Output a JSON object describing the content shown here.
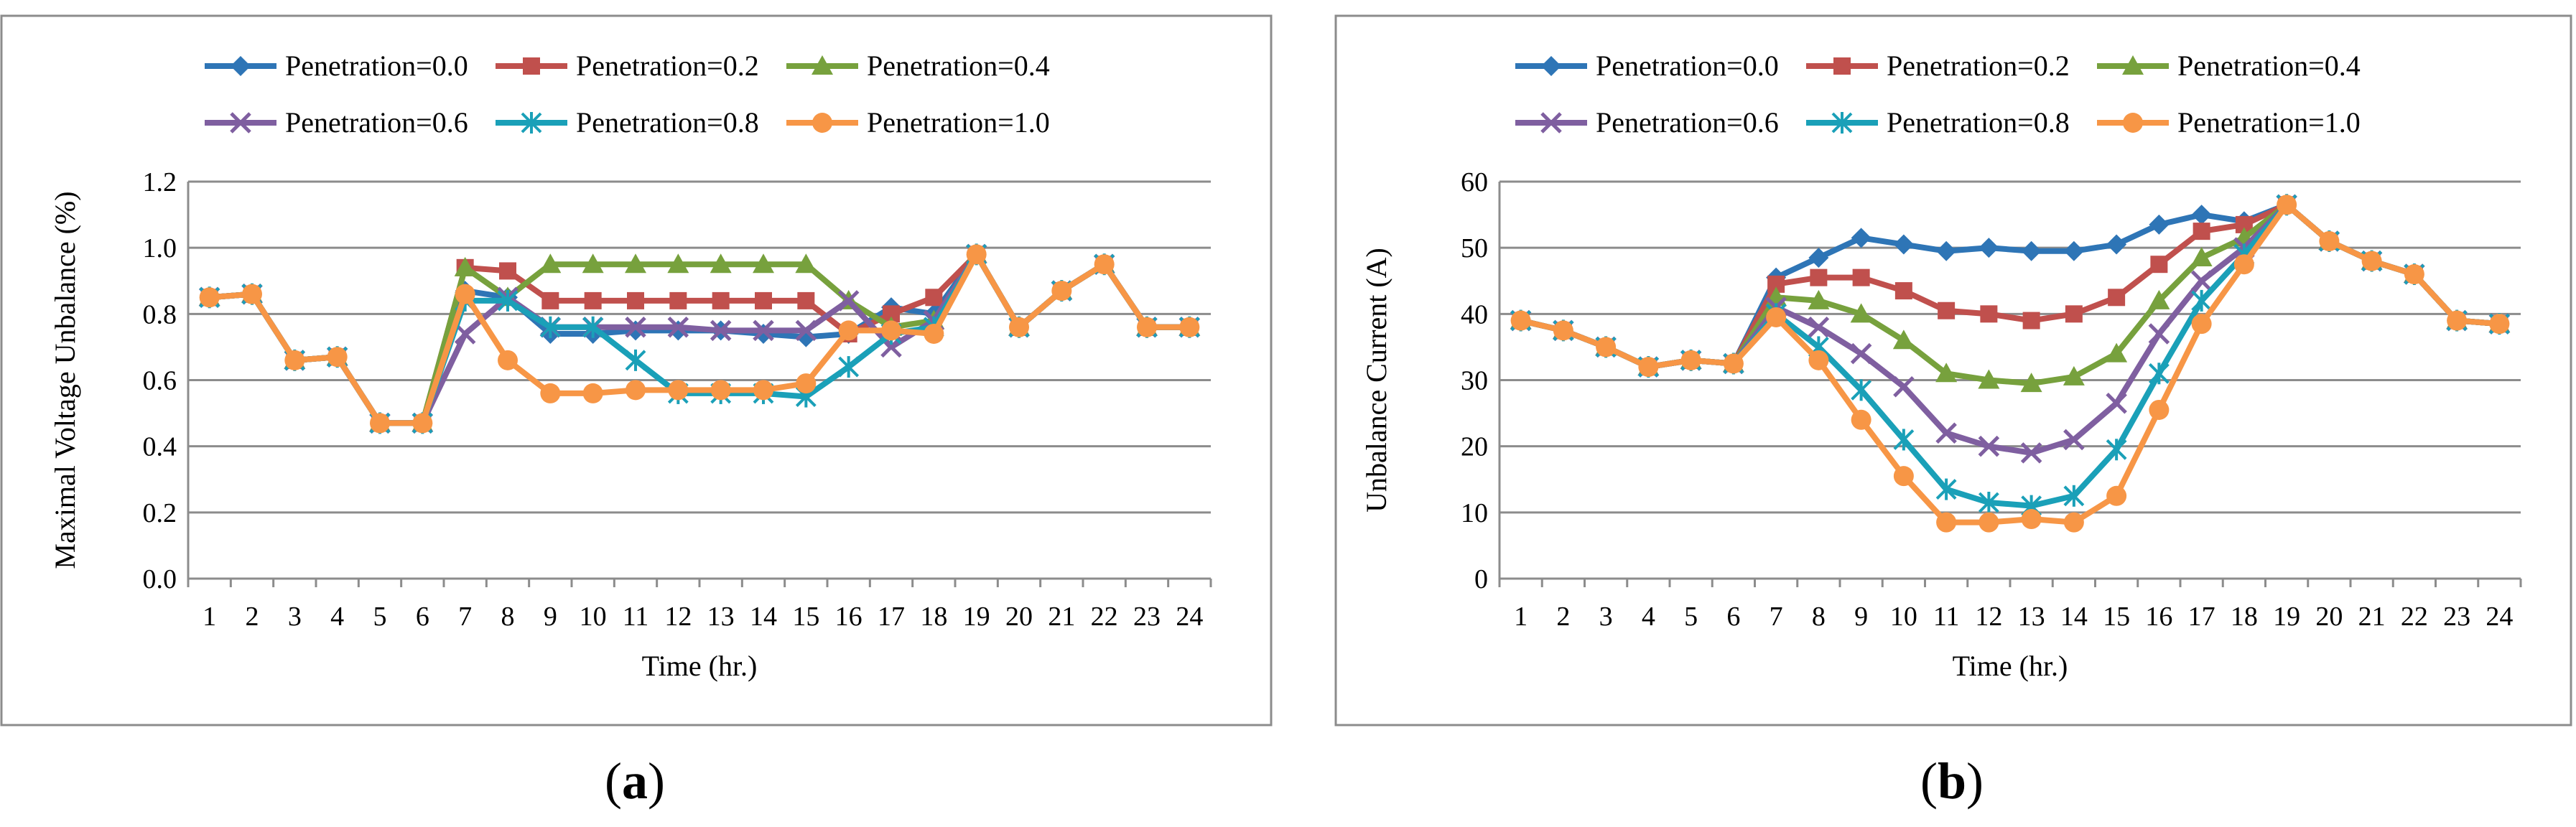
{
  "chart_data": [
    {
      "type": "line",
      "panel_label": "a",
      "caption_open": "(",
      "caption_close": ")",
      "title": "",
      "xlabel": "Time  (hr.)",
      "ylabel": "Maximal  Voltage  Unbalance (%)",
      "ylim": [
        0,
        1.2
      ],
      "ytick_values": [
        0,
        0.2,
        0.4,
        0.6,
        0.8,
        1.0,
        1.2
      ],
      "ytick_labels": [
        "0.0",
        "0.2",
        "0.4",
        "0.6",
        "0.8",
        "1.0",
        "1.2"
      ],
      "categories": [
        "1",
        "2",
        "3",
        "4",
        "5",
        "6",
        "7",
        "8",
        "9",
        "10",
        "11",
        "12",
        "13",
        "14",
        "15",
        "16",
        "17",
        "18",
        "19",
        "20",
        "21",
        "22",
        "23",
        "24"
      ],
      "grid": true,
      "legend_position": "top",
      "series": [
        {
          "name": "Penetration=0.0",
          "color": "#2e75b6",
          "marker": "diamond",
          "values": [
            0.85,
            0.86,
            0.66,
            0.67,
            0.47,
            0.47,
            0.87,
            0.85,
            0.74,
            0.74,
            0.75,
            0.75,
            0.75,
            0.74,
            0.73,
            0.74,
            0.82,
            0.8,
            0.98,
            0.76,
            0.87,
            0.95,
            0.76,
            0.76
          ]
        },
        {
          "name": "Penetration=0.2",
          "color": "#c0504d",
          "marker": "square",
          "values": [
            0.85,
            0.86,
            0.66,
            0.67,
            0.47,
            0.47,
            0.94,
            0.93,
            0.84,
            0.84,
            0.84,
            0.84,
            0.84,
            0.84,
            0.84,
            0.74,
            0.8,
            0.85,
            0.98,
            0.76,
            0.87,
            0.95,
            0.76,
            0.76
          ]
        },
        {
          "name": "Penetration=0.4",
          "color": "#77a13d",
          "marker": "triangle",
          "values": [
            0.85,
            0.86,
            0.66,
            0.67,
            0.47,
            0.47,
            0.94,
            0.85,
            0.95,
            0.95,
            0.95,
            0.95,
            0.95,
            0.95,
            0.95,
            0.84,
            0.76,
            0.78,
            0.98,
            0.76,
            0.87,
            0.95,
            0.76,
            0.76
          ]
        },
        {
          "name": "Penetration=0.6",
          "color": "#7f5fa0",
          "marker": "x",
          "values": [
            0.85,
            0.86,
            0.66,
            0.67,
            0.47,
            0.47,
            0.74,
            0.85,
            0.76,
            0.76,
            0.76,
            0.76,
            0.75,
            0.75,
            0.75,
            0.84,
            0.7,
            0.78,
            0.98,
            0.76,
            0.87,
            0.95,
            0.76,
            0.76
          ]
        },
        {
          "name": "Penetration=0.8",
          "color": "#1aa0b8",
          "marker": "star",
          "values": [
            0.85,
            0.86,
            0.66,
            0.67,
            0.47,
            0.47,
            0.84,
            0.84,
            0.76,
            0.76,
            0.66,
            0.56,
            0.56,
            0.56,
            0.55,
            0.64,
            0.74,
            0.76,
            0.98,
            0.76,
            0.87,
            0.95,
            0.76,
            0.76
          ]
        },
        {
          "name": "Penetration=1.0",
          "color": "#f79646",
          "marker": "circle",
          "values": [
            0.85,
            0.86,
            0.66,
            0.67,
            0.47,
            0.47,
            0.86,
            0.66,
            0.56,
            0.56,
            0.57,
            0.57,
            0.57,
            0.57,
            0.59,
            0.75,
            0.75,
            0.74,
            0.98,
            0.76,
            0.87,
            0.95,
            0.76,
            0.76
          ]
        }
      ]
    },
    {
      "type": "line",
      "panel_label": "b",
      "caption_open": "(",
      "caption_close": ")",
      "title": "",
      "xlabel": "Time  (hr.)",
      "ylabel": "Unbalance Current  (A)",
      "ylim": [
        0,
        60
      ],
      "ytick_values": [
        0,
        10,
        20,
        30,
        40,
        50,
        60
      ],
      "ytick_labels": [
        "0",
        "10",
        "20",
        "30",
        "40",
        "50",
        "60"
      ],
      "categories": [
        "1",
        "2",
        "3",
        "4",
        "5",
        "6",
        "7",
        "8",
        "9",
        "10",
        "11",
        "12",
        "13",
        "14",
        "15",
        "16",
        "17",
        "18",
        "19",
        "20",
        "21",
        "22",
        "23",
        "24"
      ],
      "grid": true,
      "legend_position": "top",
      "series": [
        {
          "name": "Penetration=0.0",
          "color": "#2e75b6",
          "marker": "diamond",
          "values": [
            39,
            37.5,
            35,
            32,
            33,
            32.5,
            45.5,
            48.5,
            51.5,
            50.5,
            49.5,
            50,
            49.5,
            49.5,
            50.5,
            53.5,
            55,
            54,
            56.5,
            51,
            48,
            46,
            39,
            38.5
          ]
        },
        {
          "name": "Penetration=0.2",
          "color": "#c0504d",
          "marker": "square",
          "values": [
            39,
            37.5,
            35,
            32,
            33,
            32.5,
            44.5,
            45.5,
            45.5,
            43.5,
            40.5,
            40,
            39,
            40,
            42.5,
            47.5,
            52.5,
            53.5,
            56.5,
            51,
            48,
            46,
            39,
            38.5
          ]
        },
        {
          "name": "Penetration=0.4",
          "color": "#77a13d",
          "marker": "triangle",
          "values": [
            39,
            37.5,
            35,
            32,
            33,
            32.5,
            42.5,
            42,
            40,
            36,
            31,
            30,
            29.5,
            30.5,
            34,
            42,
            48.5,
            51.5,
            56.5,
            51,
            48,
            46,
            39,
            38.5
          ]
        },
        {
          "name": "Penetration=0.6",
          "color": "#7f5fa0",
          "marker": "x",
          "values": [
            39,
            37.5,
            35,
            32,
            33,
            32.5,
            41,
            38,
            34,
            29,
            22,
            20,
            19,
            21,
            26.5,
            37,
            45,
            50,
            56.5,
            51,
            48,
            46,
            39,
            38.5
          ]
        },
        {
          "name": "Penetration=0.8",
          "color": "#1aa0b8",
          "marker": "star",
          "values": [
            39,
            37.5,
            35,
            32,
            33,
            32.5,
            40,
            35,
            28.5,
            21,
            13.5,
            11.5,
            11,
            12.5,
            19.5,
            31,
            42,
            49,
            56.5,
            51,
            48,
            46,
            39,
            38.5
          ]
        },
        {
          "name": "Penetration=1.0",
          "color": "#f79646",
          "marker": "circle",
          "values": [
            39,
            37.5,
            35,
            32,
            33,
            32.5,
            39.5,
            33,
            24,
            15.5,
            8.5,
            8.5,
            9,
            8.5,
            12.5,
            25.5,
            38.5,
            47.5,
            56.5,
            51,
            48,
            46,
            39,
            38.5
          ]
        }
      ]
    }
  ]
}
